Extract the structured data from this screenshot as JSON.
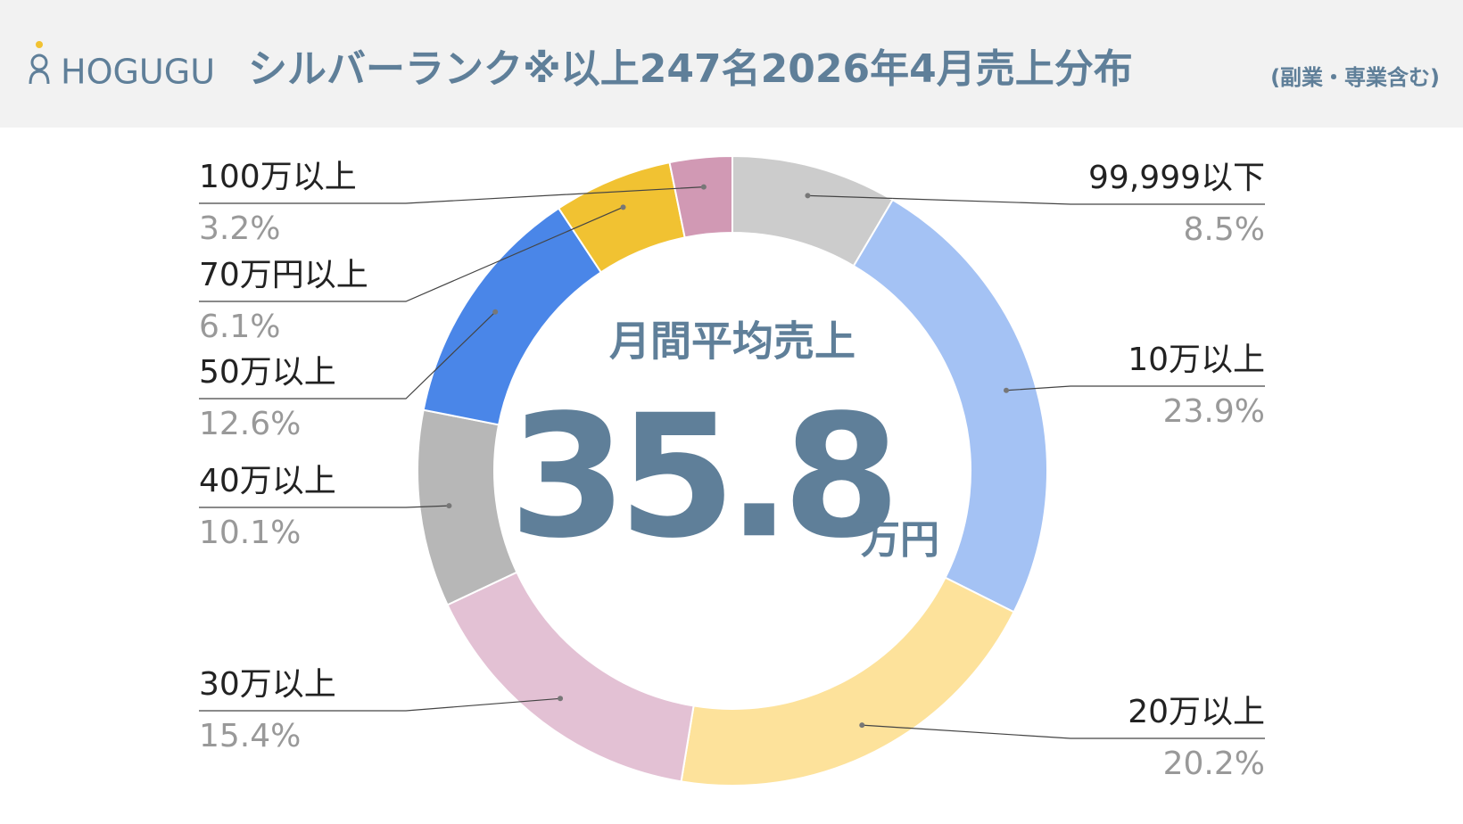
{
  "header": {
    "logo": "HOGUGU"
  },
  "chart_data": {
    "type": "donut",
    "title": "シルバーランク※以上247名2026年4月売上分布",
    "subtitle": "(副業・専業含む)",
    "center_label": "月間平均売上",
    "center_value": 35.8,
    "center_unit": "万円",
    "categories": [
      "99,999以下",
      "10万以上",
      "20万以上",
      "30万以上",
      "40万以上",
      "50万以上",
      "70万円以上",
      "100万以上"
    ],
    "values": [
      8.5,
      23.9,
      20.2,
      15.4,
      10.1,
      12.6,
      6.1,
      3.2
    ],
    "value_labels": [
      "8.5%",
      "23.9%",
      "20.2%",
      "15.4%",
      "10.1%",
      "12.6%",
      "6.1%",
      "3.2%"
    ],
    "colors": [
      "#cccccc",
      "#a4c2f4",
      "#fde29b",
      "#e3c1d4",
      "#b7b7b7",
      "#4a86e8",
      "#f1c232",
      "#d199b4"
    ]
  }
}
